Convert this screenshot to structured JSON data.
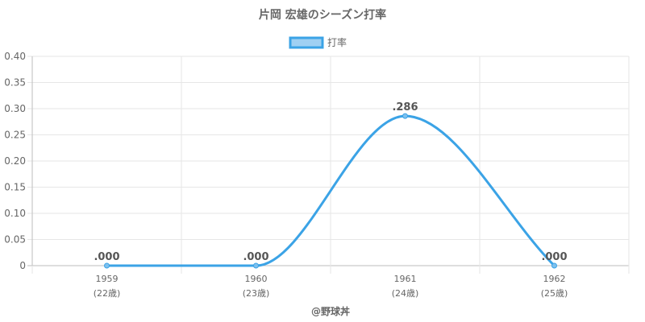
{
  "chart_data": {
    "type": "line",
    "title": "片岡 宏雄のシーズン打率",
    "categories": [
      "1959",
      "1960",
      "1961",
      "1962"
    ],
    "age_labels": [
      "(22歳)",
      "(23歳)",
      "(24歳)",
      "(25歳)"
    ],
    "series": [
      {
        "name": "打率",
        "values": [
          0.0,
          0.0,
          0.286,
          0.0
        ],
        "data_labels": [
          ".000",
          ".000",
          ".286",
          ".000"
        ],
        "color": "#3ba3e6"
      }
    ],
    "ylim": [
      0,
      0.4
    ],
    "yticks": [
      "0",
      "0.05",
      "0.10",
      "0.15",
      "0.20",
      "0.25",
      "0.30",
      "0.35",
      "0.40"
    ],
    "grid": true,
    "legend": "top-center"
  },
  "footer": "@野球丼"
}
